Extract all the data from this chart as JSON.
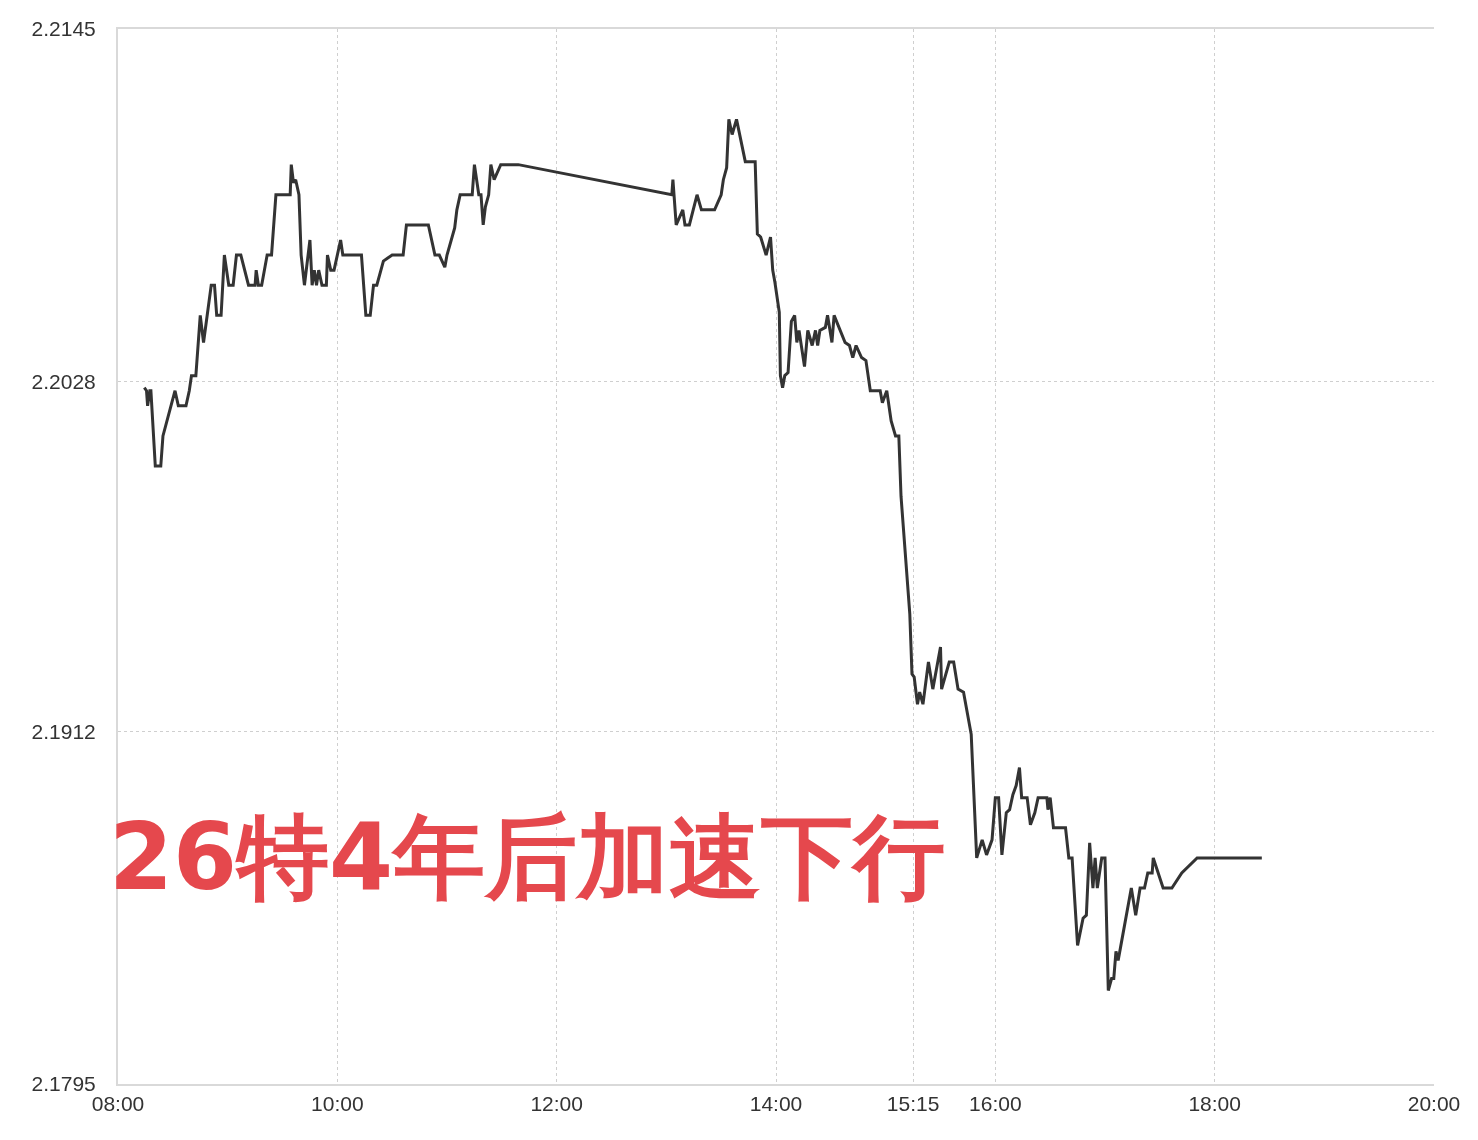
{
  "chart_data": {
    "type": "line",
    "annotations": [
      "26特4年后加速下行"
    ],
    "x": [
      8.24,
      8.26,
      8.27,
      8.29,
      8.3,
      8.34,
      8.39,
      8.41,
      8.52,
      8.55,
      8.62,
      8.65,
      8.67,
      8.71,
      8.75,
      8.78,
      8.85,
      8.88,
      8.9,
      8.94,
      8.97,
      9.01,
      9.05,
      9.08,
      9.12,
      9.19,
      9.25,
      9.26,
      9.28,
      9.31,
      9.36,
      9.4,
      9.44,
      9.57,
      9.58,
      9.6,
      9.62,
      9.65,
      9.67,
      9.7,
      9.75,
      9.77,
      9.79,
      9.81,
      9.83,
      9.86,
      9.9,
      9.91,
      9.94,
      9.97,
      10.03,
      10.05,
      10.22,
      10.26,
      10.3,
      10.33,
      10.36,
      10.42,
      10.46,
      10.5,
      10.6,
      10.63,
      10.83,
      10.89,
      10.93,
      10.98,
      11.0,
      11.07,
      11.09,
      11.12,
      11.23,
      11.25,
      11.29,
      11.31,
      11.33,
      11.35,
      11.38,
      11.4,
      11.43,
      11.49,
      11.65,
      13.05,
      13.06,
      13.09,
      13.15,
      13.17,
      13.21,
      13.28,
      13.32,
      13.44,
      13.5,
      13.52,
      13.55,
      13.57,
      13.6,
      13.64,
      13.72,
      13.81,
      13.83,
      13.86,
      13.91,
      13.95,
      13.97,
      13.99,
      14.03,
      14.04,
      14.06,
      14.08,
      14.11,
      14.14,
      14.17,
      14.19,
      14.21,
      14.26,
      14.29,
      14.33,
      14.36,
      14.38,
      14.4,
      14.45,
      14.47,
      14.51,
      14.53,
      14.63,
      14.67,
      14.7,
      14.73,
      14.78,
      14.82,
      14.86,
      14.95,
      14.97,
      15.01,
      15.05,
      15.09,
      15.12,
      15.14,
      15.22,
      15.24,
      15.26,
      15.29,
      15.31,
      15.34,
      15.39,
      15.43,
      15.5,
      15.51,
      15.58,
      15.62,
      15.66,
      15.71,
      15.78,
      15.83,
      15.88,
      15.92,
      15.97,
      16.0,
      16.03,
      16.06,
      16.1,
      16.13,
      16.16,
      16.19,
      16.22,
      16.24,
      16.29,
      16.32,
      16.36,
      16.39,
      16.47,
      16.48,
      16.5,
      16.53,
      16.64,
      16.67,
      16.7,
      16.75,
      16.8,
      16.83,
      16.86,
      16.89,
      16.91,
      16.93,
      16.97,
      17.0,
      17.03,
      17.06,
      17.08,
      17.1,
      17.12,
      17.14,
      17.24,
      17.28,
      17.32,
      17.36,
      17.39,
      17.43,
      17.44,
      17.53,
      17.61,
      17.7,
      17.84,
      18.43
    ],
    "series": [
      {
        "color": "#333333",
        "values": [
          2.2026,
          2.2025,
          2.202,
          2.2025,
          2.2025,
          2.2,
          2.2,
          2.201,
          2.2025,
          2.202,
          2.202,
          2.2025,
          2.203,
          2.203,
          2.205,
          2.2041,
          2.206,
          2.206,
          2.205,
          2.205,
          2.207,
          2.206,
          2.206,
          2.207,
          2.207,
          2.206,
          2.206,
          2.2065,
          2.206,
          2.206,
          2.207,
          2.207,
          2.209,
          2.209,
          2.21,
          2.2094,
          2.2095,
          2.209,
          2.207,
          2.206,
          2.2075,
          2.206,
          2.2065,
          2.206,
          2.2065,
          2.206,
          2.206,
          2.207,
          2.2065,
          2.2065,
          2.2075,
          2.207,
          2.207,
          2.205,
          2.205,
          2.206,
          2.206,
          2.2068,
          2.2069,
          2.207,
          2.207,
          2.208,
          2.208,
          2.207,
          2.207,
          2.2066,
          2.207,
          2.2079,
          2.2085,
          2.209,
          2.209,
          2.21,
          2.209,
          2.209,
          2.208,
          2.2086,
          2.209,
          2.21,
          2.2095,
          2.21,
          2.21,
          2.209,
          2.2095,
          2.208,
          2.2085,
          2.208,
          2.208,
          2.209,
          2.2085,
          2.2085,
          2.209,
          2.2095,
          2.2099,
          2.2115,
          2.211,
          2.2115,
          2.2101,
          2.2101,
          2.2077,
          2.2076,
          2.207,
          2.2076,
          2.2065,
          2.2061,
          2.2051,
          2.203,
          2.2026,
          2.203,
          2.2031,
          2.2048,
          2.205,
          2.2041,
          2.2045,
          2.2033,
          2.2045,
          2.204,
          2.2045,
          2.204,
          2.2045,
          2.2046,
          2.205,
          2.2041,
          2.205,
          2.2041,
          2.204,
          2.2036,
          2.204,
          2.2036,
          2.2035,
          2.2025,
          2.2025,
          2.2021,
          2.2025,
          2.2015,
          2.201,
          2.201,
          2.199,
          2.1951,
          2.1931,
          2.193,
          2.1921,
          2.1925,
          2.1921,
          2.1935,
          2.1926,
          2.194,
          2.1926,
          2.1935,
          2.1935,
          2.1926,
          2.1925,
          2.1911,
          2.187,
          2.1876,
          2.1871,
          2.1876,
          2.189,
          2.189,
          2.1871,
          2.1885,
          2.1886,
          2.1891,
          2.1894,
          2.19,
          2.189,
          2.189,
          2.1881,
          2.1885,
          2.189,
          2.189,
          2.1886,
          2.189,
          2.188,
          2.188,
          2.187,
          2.187,
          2.1841,
          2.185,
          2.1851,
          2.1875,
          2.186,
          2.187,
          2.186,
          2.187,
          2.187,
          2.1826,
          2.183,
          2.183,
          2.1839,
          2.1836,
          2.184,
          2.186,
          2.1851,
          2.186,
          2.186,
          2.1865,
          2.1865,
          2.187,
          2.186,
          2.186,
          2.1865,
          2.187,
          2.187
        ]
      }
    ],
    "xlim": [
      8,
      20
    ],
    "xticks": [
      {
        "value": 8,
        "label": "08:00"
      },
      {
        "value": 10,
        "label": "10:00"
      },
      {
        "value": 12,
        "label": "12:00"
      },
      {
        "value": 14,
        "label": "14:00"
      },
      {
        "value": 15.25,
        "label": "15:15"
      },
      {
        "value": 16,
        "label": "16:00"
      },
      {
        "value": 18,
        "label": "18:00"
      },
      {
        "value": 20,
        "label": "20:00"
      }
    ],
    "ylim": [
      2.1795,
      2.2145
    ],
    "yticks": [
      2.1795,
      2.1912,
      2.2028,
      2.2145
    ],
    "grid": true,
    "marker": "none",
    "line_style": "solid"
  }
}
